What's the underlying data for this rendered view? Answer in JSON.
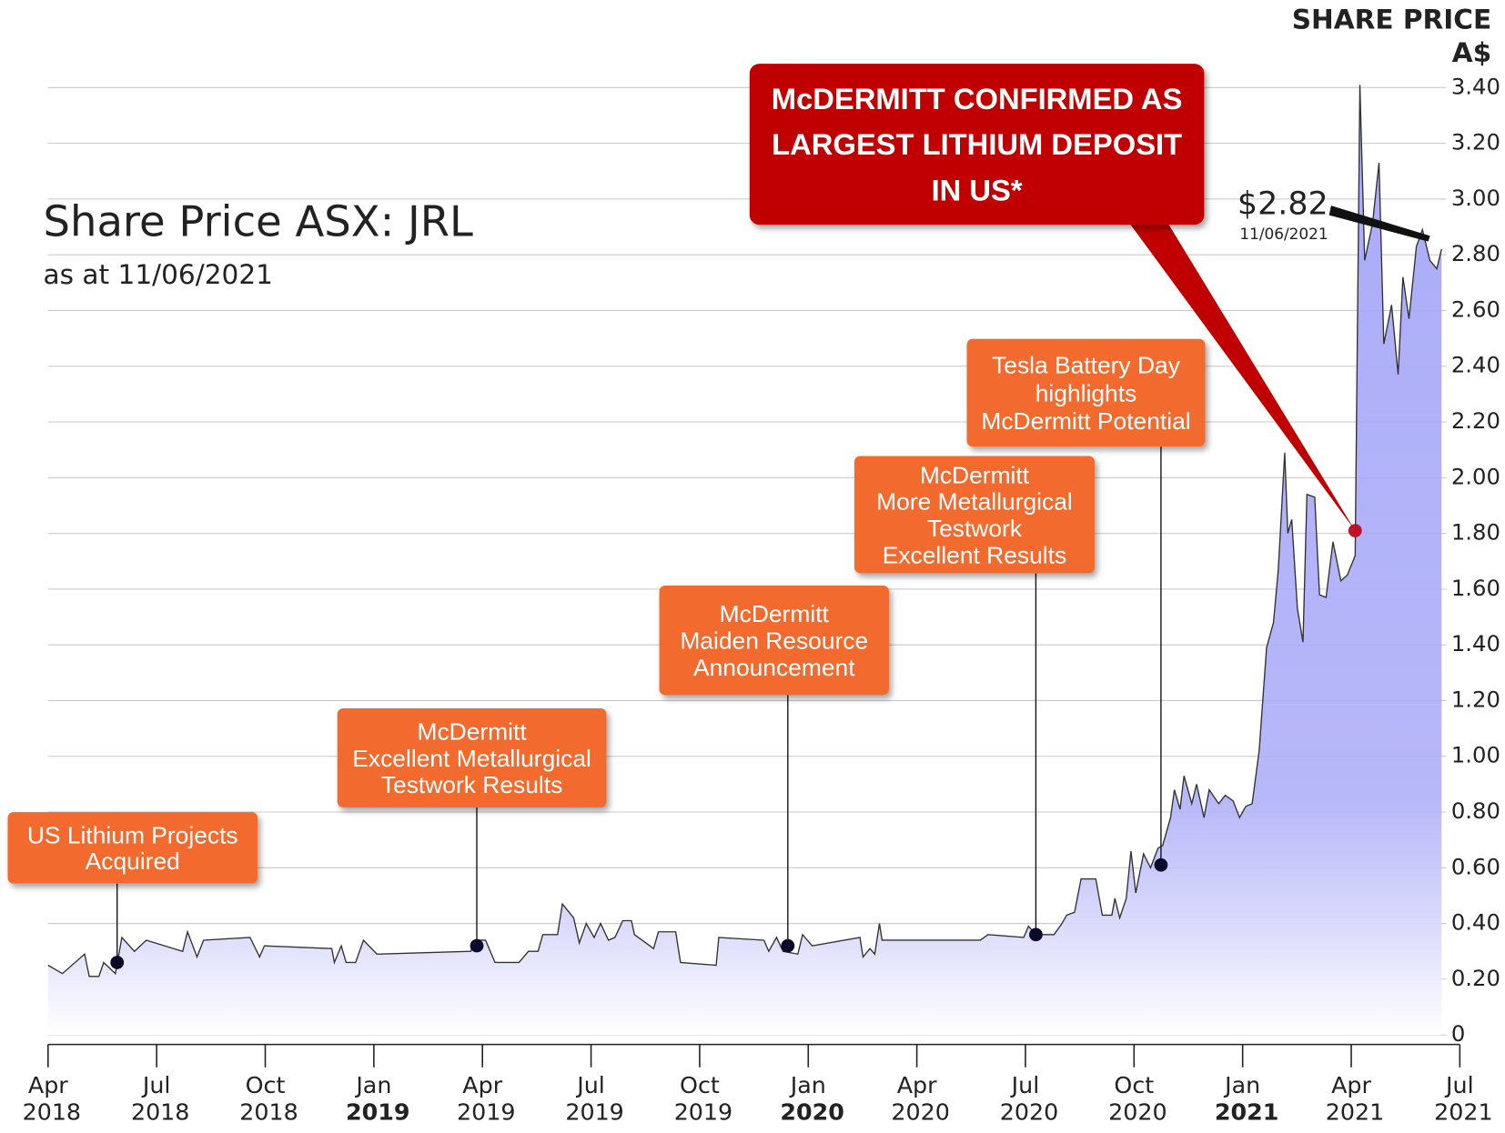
{
  "chart_data": {
    "type": "area",
    "title": "Share Price ASX: JRL",
    "subtitle": "as at 11/06/2021",
    "y_label": [
      "SHARE PRICE",
      "A$"
    ],
    "color": "#aaabf8",
    "line_color": "#333333",
    "grid": true,
    "xlim": [
      2018.25,
      2021.5
    ],
    "ylim": [
      0,
      3.4
    ],
    "xticks": [
      {
        "value": 2018.25,
        "label": "Apr 2018"
      },
      {
        "value": 2018.5,
        "label": "Jul 2018"
      },
      {
        "value": 2018.75,
        "label": "Oct 2018"
      },
      {
        "value": 2019,
        "label": "Jan 2019"
      },
      {
        "value": 2019.25,
        "label": "Apr 2019"
      },
      {
        "value": 2019.5,
        "label": "Jul 2019"
      },
      {
        "value": 2019.75,
        "label": "Oct 2019"
      },
      {
        "value": 2020,
        "label": "Jan 2020"
      },
      {
        "value": 2020.25,
        "label": "Apr 2020"
      },
      {
        "value": 2020.5,
        "label": "Jul 2020"
      },
      {
        "value": 2020.75,
        "label": "Oct 2020"
      },
      {
        "value": 2021,
        "label": "Jan 2021"
      },
      {
        "value": 2021.25,
        "label": "Apr 2021"
      },
      {
        "value": 2021.5,
        "label": "Jul 2021"
      }
    ],
    "yticks": [
      0,
      {
        "value": 0.2,
        "label": "0.20"
      },
      {
        "value": 0.4,
        "label": "0.40"
      },
      {
        "value": 0.6,
        "label": "0.60"
      },
      {
        "value": 0.8,
        "label": "0.80"
      },
      {
        "value": 1,
        "label": "1.00"
      },
      {
        "value": 1.2,
        "label": "1.20"
      },
      {
        "value": 1.4,
        "label": "1.40"
      },
      {
        "value": 1.6,
        "label": "1.60"
      },
      {
        "value": 1.8,
        "label": "1.80"
      },
      {
        "value": 2,
        "label": "2.00"
      },
      {
        "value": 2.2,
        "label": "2.20"
      },
      {
        "value": 2.4,
        "label": "2.40"
      },
      {
        "value": 2.6,
        "label": "2.60"
      },
      {
        "value": 2.8,
        "label": "2.80"
      },
      {
        "value": 3,
        "label": "3.00"
      },
      {
        "value": 3.2,
        "label": "3.20"
      },
      {
        "value": 3.4,
        "label": "3.40"
      }
    ],
    "x": [
      2018.25,
      2018.283,
      2018.334,
      2018.345,
      2018.367,
      2018.378,
      2018.405,
      2018.42,
      2018.449,
      2018.476,
      2018.56,
      2018.571,
      2018.593,
      2018.608,
      2018.715,
      2018.737,
      2018.748,
      2018.903,
      2018.909,
      2018.925,
      2018.936,
      2018.958,
      2018.976,
      2019.007,
      2019.223,
      2019.235,
      2019.257,
      2019.279,
      2019.334,
      2019.356,
      2019.378,
      2019.389,
      2019.423,
      2019.434,
      2019.46,
      2019.473,
      2019.489,
      2019.507,
      2019.522,
      2019.54,
      2019.555,
      2019.573,
      2019.593,
      2019.6,
      2019.644,
      2019.655,
      2019.695,
      2019.706,
      2019.788,
      2019.794,
      2019.898,
      2019.909,
      2019.927,
      2019.942,
      2019.976,
      2019.987,
      2020.009,
      2020.119,
      2020.126,
      2020.142,
      2020.153,
      2020.164,
      2020.17,
      2020.396,
      2020.414,
      2020.496,
      2020.507,
      2020.524,
      2020.566,
      2020.584,
      2020.595,
      2020.613,
      2020.628,
      2020.662,
      2020.677,
      2020.699,
      2020.706,
      2020.717,
      2020.732,
      2020.743,
      2020.754,
      2020.772,
      2020.788,
      2020.805,
      2020.816,
      2020.834,
      2020.843,
      2020.856,
      2020.865,
      2020.883,
      2020.894,
      2020.911,
      2020.923,
      2020.945,
      2020.96,
      2020.978,
      2020.993,
      2021.007,
      2021.022,
      2021.038,
      2021.055,
      2021.071,
      2021.082,
      2021.097,
      2021.104,
      2021.113,
      2021.126,
      2021.139,
      2021.148,
      2021.166,
      2021.177,
      2021.192,
      2021.208,
      2021.226,
      2021.241,
      2021.259,
      2021.27,
      2021.281,
      2021.299,
      2021.314,
      2021.325,
      2021.343,
      2021.358,
      2021.369,
      2021.383,
      2021.4,
      2021.414,
      2021.431,
      2021.447,
      2021.458
    ],
    "values": [
      0.25,
      0.22,
      0.29,
      0.21,
      0.21,
      0.26,
      0.22,
      0.35,
      0.3,
      0.34,
      0.3,
      0.37,
      0.28,
      0.34,
      0.35,
      0.28,
      0.32,
      0.31,
      0.26,
      0.32,
      0.26,
      0.26,
      0.34,
      0.29,
      0.3,
      0.34,
      0.34,
      0.26,
      0.26,
      0.3,
      0.3,
      0.36,
      0.36,
      0.47,
      0.42,
      0.33,
      0.4,
      0.35,
      0.4,
      0.34,
      0.35,
      0.41,
      0.41,
      0.36,
      0.31,
      0.37,
      0.37,
      0.26,
      0.25,
      0.35,
      0.34,
      0.3,
      0.35,
      0.3,
      0.29,
      0.36,
      0.32,
      0.35,
      0.28,
      0.31,
      0.29,
      0.4,
      0.34,
      0.34,
      0.36,
      0.35,
      0.39,
      0.36,
      0.36,
      0.4,
      0.43,
      0.44,
      0.56,
      0.56,
      0.43,
      0.43,
      0.49,
      0.42,
      0.49,
      0.66,
      0.51,
      0.65,
      0.6,
      0.67,
      0.68,
      0.78,
      0.88,
      0.81,
      0.93,
      0.83,
      0.9,
      0.78,
      0.88,
      0.83,
      0.86,
      0.84,
      0.78,
      0.82,
      0.83,
      1.02,
      1.39,
      1.48,
      1.67,
      2.09,
      1.8,
      1.85,
      1.53,
      1.41,
      1.94,
      1.93,
      1.58,
      1.57,
      1.77,
      1.63,
      1.65,
      1.72,
      3.41,
      2.78,
      2.91,
      3.13,
      2.48,
      2.62,
      2.37,
      2.72,
      2.57,
      2.83,
      2.89,
      2.78,
      2.75,
      2.82
    ],
    "events": [
      {
        "lines": [
          "US Lithium Projects",
          "Acquired"
        ],
        "x": 2018.409,
        "value": 0.26
      },
      {
        "lines": [
          "McDermitt",
          "Excellent Metallurgical",
          "Testwork Results"
        ],
        "x": 2019.237,
        "value": 0.32
      },
      {
        "lines": [
          "McDermitt",
          "Maiden Resource",
          "Announcement"
        ],
        "x": 2019.953,
        "value": 0.32
      },
      {
        "lines": [
          "McDermitt",
          "More Metallurgical",
          "Testwork",
          "Excellent Results"
        ],
        "x": 2020.524,
        "value": 0.36
      },
      {
        "lines": [
          "Tesla Battery Day",
          "highlights",
          "McDermitt Potential"
        ],
        "x": 2020.812,
        "value": 0.61
      },
      {
        "lines": [
          "McDERMITT CONFIRMED AS",
          "LARGEST LITHIUM DEPOSIT",
          "IN US*"
        ],
        "x": 2021.259,
        "value": 1.81
      }
    ],
    "last_price": {
      "label": "$2.82",
      "date": "11/06/2021"
    }
  }
}
